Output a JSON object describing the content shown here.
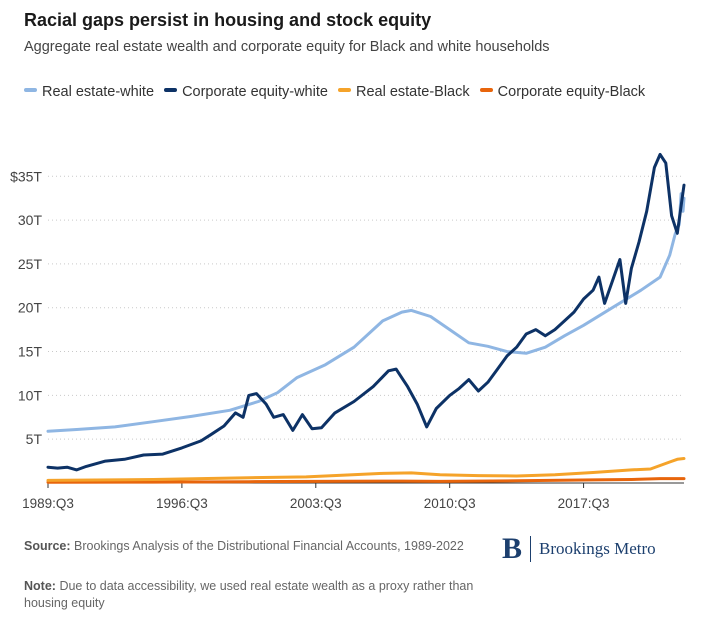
{
  "title": "Racial gaps persist in housing and stock equity",
  "subtitle": "Aggregate real estate wealth and corporate equity for Black and white households",
  "legend": [
    {
      "label": "Real estate-white",
      "color": "#8fb6e3"
    },
    {
      "label": "Corporate equity-white",
      "color": "#0d3266"
    },
    {
      "label": "Real estate-Black",
      "color": "#f5a32a"
    },
    {
      "label": "Corporate equity-Black",
      "color": "#e8650c"
    }
  ],
  "footer": {
    "source_label": "Source:",
    "source_text": "Brookings Analysis of the Distributional Financial Accounts, 1989-2022",
    "note_label": "Note:",
    "note_text": "Due to data accessibility, we used real estate wealth as a proxy rather than housing equity"
  },
  "logo": {
    "mark": "B",
    "name": "Brookings Metro"
  },
  "chart_data": {
    "type": "line",
    "x_ticks": [
      "1989:Q3",
      "1996:Q3",
      "2003:Q3",
      "2010:Q3",
      "2017:Q3"
    ],
    "y_ticks": [
      "5T",
      "10T",
      "15T",
      "20T",
      "25T",
      "30T",
      "$35T"
    ],
    "y_tick_values": [
      5,
      10,
      15,
      20,
      25,
      30,
      35
    ],
    "ylim": [
      0,
      38
    ],
    "xlim": [
      1989.5,
      2022.75
    ],
    "grid": "horizontal dotted",
    "series": [
      {
        "name": "Real estate-white",
        "color": "#8fb6e3",
        "points": [
          [
            1989.5,
            5.9
          ],
          [
            1991,
            6.1
          ],
          [
            1993,
            6.4
          ],
          [
            1995,
            7.0
          ],
          [
            1997,
            7.6
          ],
          [
            1999,
            8.3
          ],
          [
            2000.5,
            9.3
          ],
          [
            2001.5,
            10.3
          ],
          [
            2002.5,
            12.0
          ],
          [
            2004,
            13.5
          ],
          [
            2005.5,
            15.5
          ],
          [
            2007,
            18.5
          ],
          [
            2008,
            19.5
          ],
          [
            2008.5,
            19.7
          ],
          [
            2009.5,
            19.0
          ],
          [
            2010.5,
            17.5
          ],
          [
            2011.5,
            16.0
          ],
          [
            2012.5,
            15.6
          ],
          [
            2013.5,
            15.0
          ],
          [
            2014.5,
            14.8
          ],
          [
            2015.5,
            15.5
          ],
          [
            2016.5,
            16.8
          ],
          [
            2017.5,
            18.0
          ],
          [
            2019,
            20.0
          ],
          [
            2020.5,
            22.0
          ],
          [
            2021.5,
            23.5
          ],
          [
            2022,
            26.0
          ],
          [
            2022.3,
            28.5
          ],
          [
            2022.5,
            29.5
          ],
          [
            2022.6,
            33.0
          ],
          [
            2022.7,
            31.0
          ],
          [
            2022.75,
            32.5
          ]
        ]
      },
      {
        "name": "Corporate equity-white",
        "color": "#0d3266",
        "points": [
          [
            1989.5,
            1.8
          ],
          [
            1990,
            1.7
          ],
          [
            1990.5,
            1.8
          ],
          [
            1991,
            1.5
          ],
          [
            1991.5,
            1.9
          ],
          [
            1992.5,
            2.5
          ],
          [
            1993.5,
            2.7
          ],
          [
            1994.5,
            3.2
          ],
          [
            1995.5,
            3.3
          ],
          [
            1996.5,
            4.0
          ],
          [
            1997.5,
            4.8
          ],
          [
            1998,
            5.5
          ],
          [
            1998.7,
            6.5
          ],
          [
            1999.3,
            8.0
          ],
          [
            1999.7,
            7.5
          ],
          [
            2000,
            10.0
          ],
          [
            2000.4,
            10.2
          ],
          [
            2000.9,
            9.0
          ],
          [
            2001.3,
            7.5
          ],
          [
            2001.8,
            7.8
          ],
          [
            2002.3,
            6.0
          ],
          [
            2002.8,
            7.8
          ],
          [
            2003.3,
            6.2
          ],
          [
            2003.8,
            6.3
          ],
          [
            2004.5,
            8.0
          ],
          [
            2005.5,
            9.3
          ],
          [
            2006.5,
            11.0
          ],
          [
            2007.3,
            12.8
          ],
          [
            2007.7,
            13.0
          ],
          [
            2008.3,
            11.0
          ],
          [
            2008.8,
            9.0
          ],
          [
            2009.3,
            6.4
          ],
          [
            2009.8,
            8.5
          ],
          [
            2010.5,
            10.0
          ],
          [
            2011,
            10.8
          ],
          [
            2011.5,
            11.8
          ],
          [
            2012,
            10.5
          ],
          [
            2012.5,
            11.5
          ],
          [
            2013,
            13.0
          ],
          [
            2013.5,
            14.5
          ],
          [
            2014,
            15.5
          ],
          [
            2014.5,
            17.0
          ],
          [
            2015,
            17.5
          ],
          [
            2015.5,
            16.8
          ],
          [
            2016,
            17.5
          ],
          [
            2016.5,
            18.5
          ],
          [
            2017,
            19.5
          ],
          [
            2017.5,
            21.0
          ],
          [
            2018,
            22.0
          ],
          [
            2018.3,
            23.5
          ],
          [
            2018.6,
            20.5
          ],
          [
            2019,
            23.0
          ],
          [
            2019.4,
            25.5
          ],
          [
            2019.7,
            20.5
          ],
          [
            2020,
            24.5
          ],
          [
            2020.4,
            27.5
          ],
          [
            2020.8,
            31.0
          ],
          [
            2021.2,
            36.0
          ],
          [
            2021.5,
            37.5
          ],
          [
            2021.8,
            36.5
          ],
          [
            2022.1,
            30.5
          ],
          [
            2022.4,
            28.5
          ],
          [
            2022.75,
            34.0
          ]
        ]
      },
      {
        "name": "Real estate-Black",
        "color": "#f5a32a",
        "points": [
          [
            1989.5,
            0.3
          ],
          [
            1995,
            0.4
          ],
          [
            2000,
            0.6
          ],
          [
            2003,
            0.7
          ],
          [
            2005,
            0.9
          ],
          [
            2007,
            1.1
          ],
          [
            2008.5,
            1.15
          ],
          [
            2010,
            0.95
          ],
          [
            2012,
            0.85
          ],
          [
            2014,
            0.8
          ],
          [
            2016,
            0.95
          ],
          [
            2018,
            1.2
          ],
          [
            2020,
            1.5
          ],
          [
            2021,
            1.6
          ],
          [
            2022,
            2.4
          ],
          [
            2022.4,
            2.7
          ],
          [
            2022.75,
            2.8
          ]
        ]
      },
      {
        "name": "Corporate equity-Black",
        "color": "#e8650c",
        "points": [
          [
            1989.5,
            0.08
          ],
          [
            1995,
            0.1
          ],
          [
            2000,
            0.15
          ],
          [
            2005,
            0.2
          ],
          [
            2008,
            0.22
          ],
          [
            2010,
            0.18
          ],
          [
            2014,
            0.25
          ],
          [
            2018,
            0.35
          ],
          [
            2020,
            0.4
          ],
          [
            2021.5,
            0.5
          ],
          [
            2022.75,
            0.5
          ]
        ]
      }
    ]
  }
}
